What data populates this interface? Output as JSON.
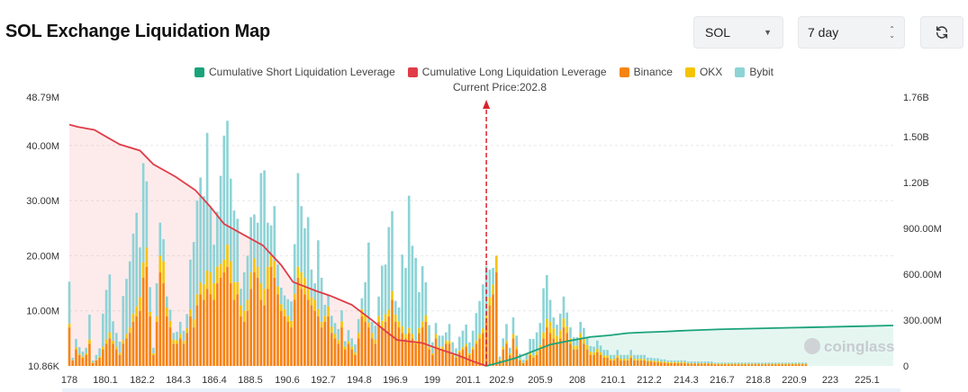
{
  "header": {
    "title": "SOL Exchange Liquidation Map",
    "symbol_value": "SOL",
    "period_value": "7 day",
    "refresh_icon": "refresh-icon"
  },
  "current_price_label": "Current Price:202.8",
  "watermark": "coinglass",
  "colors": {
    "short_line": "#1aa37a",
    "long_line": "#e03c47",
    "binance": "#f7840f",
    "okx": "#f5c400",
    "bybit": "#8dd3d6",
    "short_fill": "rgba(40,180,140,0.12)",
    "long_fill": "rgba(240,90,100,0.12)",
    "price_line": "#d8242f"
  },
  "chart_data": {
    "type": "bar",
    "title": "SOL Exchange Liquidation Map",
    "legend": [
      {
        "name": "Cumulative Short Liquidation Leverage",
        "color": "#1aa37a",
        "kind": "line"
      },
      {
        "name": "Cumulative Long Liquidation Leverage",
        "color": "#e03c47",
        "kind": "line"
      },
      {
        "name": "Binance",
        "color": "#f7840f",
        "kind": "bar"
      },
      {
        "name": "OKX",
        "color": "#f5c400",
        "kind": "bar"
      },
      {
        "name": "Bybit",
        "color": "#8dd3d6",
        "kind": "bar"
      }
    ],
    "legend_position": "top-center",
    "x_range": [
      178,
      227
    ],
    "x_ticks": [
      "178",
      "180.1",
      "182.2",
      "184.3",
      "186.4",
      "188.5",
      "190.6",
      "192.7",
      "194.8",
      "196.9",
      "199",
      "201.1",
      "202.9",
      "205.9",
      "208",
      "210.1",
      "212.2",
      "214.3",
      "216.7",
      "218.8",
      "220.9",
      "223",
      "225.1"
    ],
    "y_left": {
      "ticks": [
        "10.86K",
        "10.00M",
        "20.00M",
        "30.00M",
        "40.00M",
        "48.79M"
      ],
      "range": [
        0,
        48790000
      ]
    },
    "y_right": {
      "ticks": [
        "0",
        "300.00M",
        "600.00M",
        "900.00M",
        "1.20B",
        "1.50B",
        "1.76B"
      ],
      "range": [
        0,
        1760000000
      ]
    },
    "current_price": 202.8,
    "grid": true,
    "exchange_bars": {
      "price_start": 178.0,
      "price_step": 0.2,
      "binance": [
        7.0,
        1.0,
        3.0,
        2.0,
        1.5,
        2.0,
        4.0,
        0.5,
        1.0,
        1.5,
        3.0,
        4.0,
        5.0,
        4.0,
        3.0,
        2.0,
        4.0,
        5.0,
        6.0,
        8.0,
        9.0,
        10.0,
        16.0,
        18.0,
        9.0,
        2.0,
        8.0,
        17.0,
        15.0,
        9.0,
        7.0,
        4.0,
        4.0,
        5.0,
        4.0,
        6.0,
        9.0,
        7.0,
        11.0,
        13.0,
        12.0,
        14.0,
        13.0,
        12.0,
        15.0,
        16.0,
        17.0,
        18.0,
        15.0,
        12.0,
        13.0,
        9.0,
        8.0,
        10.0,
        14.0,
        17.0,
        16.0,
        12.0,
        11.0,
        14.0,
        18.0,
        16.0,
        13.0,
        10.0,
        9.0,
        8.0,
        7.0,
        12.0,
        16.0,
        14.0,
        13.0,
        12.0,
        11.0,
        10.0,
        9.0,
        7.0,
        8.0,
        9.0,
        6.0,
        5.0,
        4.0,
        7.0,
        3.0,
        4.0,
        3.0,
        2.0,
        5.0,
        9.0,
        8.0,
        7.0,
        5.0,
        4.0,
        8.0,
        7.0,
        8.0,
        9.0,
        12.0,
        8.0,
        7.0,
        6.0,
        5.0,
        6.0,
        5.0,
        4.0,
        6.0,
        7.0,
        8.0,
        3.0,
        2.0,
        5.0,
        3.0,
        3.0,
        4.0,
        4.0,
        2.0,
        1.5,
        2.5,
        3.0,
        3.5,
        2.0,
        3.0,
        4.0,
        5.0,
        6.0,
        8.0,
        11.0,
        13.0,
        17.0,
        1.0,
        3.0,
        4.0,
        2.0,
        5.0,
        3.0,
        1.0,
        0.5,
        1.0,
        2.0,
        1.5,
        2.0,
        3.0,
        5.0,
        7.0,
        6.0,
        5.0,
        4.0,
        5.0,
        7.0,
        6.0,
        4.0,
        3.0,
        3.0,
        5.0,
        4.0,
        3.0,
        2.0,
        2.0,
        2.5,
        2.0,
        1.5,
        1.5,
        1.0,
        1.0,
        1.5,
        1.0,
        1.0,
        1.0,
        1.5,
        1.0,
        1.0,
        1.0,
        1.0,
        0.8,
        0.8,
        0.7,
        0.7,
        0.6,
        0.6,
        0.5,
        0.5,
        0.5,
        0.5,
        0.5,
        0.5,
        0.4,
        0.4,
        0.4,
        0.4,
        0.4,
        0.4,
        0.4,
        0.4,
        0.3,
        0.3,
        0.3,
        0.3,
        0.3,
        0.3,
        0.3,
        0.3,
        0.3,
        0.3,
        0.3,
        0.3,
        0.3,
        0.3,
        0.3,
        0.3,
        0.3,
        0.3,
        0.3,
        0.3,
        0.3,
        0.3,
        0.3,
        0.3,
        0.3,
        0.3,
        0.3,
        0.3
      ],
      "okx": [
        0.7,
        0.0,
        0.4,
        0.2,
        0.2,
        0.3,
        0.8,
        0.1,
        0.1,
        0.2,
        0.5,
        0.8,
        1.1,
        0.6,
        0.5,
        0.4,
        0.7,
        0.8,
        1.0,
        1.5,
        1.8,
        2.5,
        2.8,
        3.5,
        0.8,
        0.3,
        1.0,
        3.0,
        4.0,
        1.6,
        1.2,
        0.8,
        0.7,
        0.8,
        0.6,
        0.9,
        1.3,
        1.5,
        2.0,
        2.2,
        2.8,
        3.3,
        4.0,
        3.0,
        3.0,
        2.5,
        2.3,
        4.0,
        4.0,
        3.2,
        2.2,
        2.0,
        2.0,
        2.0,
        3.0,
        2.5,
        2.0,
        3.0,
        3.0,
        4.0,
        2.0,
        3.0,
        1.4,
        1.2,
        1.3,
        1.1,
        1.2,
        1.1,
        2.0,
        3.0,
        3.0,
        2.0,
        1.5,
        2.0,
        1.3,
        1.0,
        1.1,
        1.8,
        1.1,
        0.8,
        0.7,
        1.1,
        0.5,
        0.5,
        0.5,
        0.4,
        1.0,
        1.3,
        1.2,
        0.9,
        1.0,
        0.8,
        1.1,
        1.2,
        1.4,
        1.2,
        1.6,
        1.3,
        1.1,
        1.2,
        0.8,
        0.9,
        0.8,
        0.6,
        0.9,
        1.1,
        1.2,
        0.4,
        0.3,
        0.8,
        0.5,
        0.5,
        0.6,
        0.6,
        0.3,
        0.2,
        0.3,
        0.4,
        0.5,
        0.3,
        0.4,
        0.6,
        0.8,
        0.8,
        1.1,
        1.5,
        1.8,
        3.0,
        0.2,
        0.5,
        0.6,
        0.3,
        0.8,
        0.5,
        0.2,
        0.1,
        0.2,
        0.4,
        0.4,
        0.6,
        0.8,
        1.1,
        1.5,
        2.0,
        1.8,
        1.5,
        1.5,
        1.6,
        1.2,
        1.0,
        0.7,
        0.7,
        1.0,
        0.9,
        0.8,
        0.6,
        0.5,
        0.6,
        0.5,
        0.4,
        0.4,
        0.3,
        0.3,
        0.4,
        0.3,
        0.3,
        0.3,
        0.4,
        0.3,
        0.3,
        0.3,
        0.3,
        0.2,
        0.2,
        0.2,
        0.2,
        0.2,
        0.2,
        0.2,
        0.2,
        0.2,
        0.2,
        0.2,
        0.2,
        0.1,
        0.1,
        0.1,
        0.1,
        0.1,
        0.1,
        0.1,
        0.1,
        0.1,
        0.1,
        0.1,
        0.1,
        0.1,
        0.1,
        0.1,
        0.1,
        0.1,
        0.1,
        0.1,
        0.1,
        0.1,
        0.1,
        0.1,
        0.1,
        0.1,
        0.1,
        0.1,
        0.1,
        0.1,
        0.1,
        0.1,
        0.1,
        0.1,
        0.1,
        0.1,
        0.1
      ],
      "bybit": [
        7.6,
        0.5,
        1.5,
        1.2,
        0.9,
        1.0,
        4.5,
        0.4,
        0.9,
        1.5,
        6.0,
        9.0,
        10.5,
        3.5,
        2.5,
        2.0,
        8.0,
        10.0,
        12.0,
        14.5,
        17.0,
        9.0,
        18.0,
        12.0,
        4.5,
        1.0,
        6.0,
        6.0,
        4.0,
        2.0,
        2.0,
        1.2,
        1.5,
        2.2,
        1.8,
        2.5,
        9.0,
        14.0,
        17.0,
        19.0,
        16.0,
        25.0,
        12.0,
        7.0,
        10.0,
        16.0,
        22.5,
        22.5,
        15.0,
        13.0,
        11.5,
        3.0,
        7.0,
        8.0,
        10.0,
        8.0,
        8.0,
        20.0,
        21.5,
        8.0,
        5.5,
        10.0,
        4.0,
        3.0,
        2.5,
        3.0,
        3.5,
        9.0,
        17.0,
        12.0,
        9.0,
        13.0,
        5.0,
        3.0,
        12.5,
        8.0,
        2.0,
        2.0,
        2.0,
        2.0,
        2.0,
        2.0,
        1.0,
        2.0,
        1.5,
        1.5,
        2.5,
        2.0,
        6.0,
        14.5,
        2.0,
        2.5,
        3.5,
        10.0,
        9.0,
        15.0,
        14.5,
        2.5,
        2.5,
        13.0,
        12.0,
        24.0,
        16.0,
        15.0,
        6.5,
        10.0,
        6.0,
        4.0,
        2.0,
        2.0,
        2.0,
        2.0,
        1.5,
        3.0,
        2.0,
        1.5,
        2.5,
        3.0,
        3.5,
        2.0,
        3.0,
        5.0,
        6.0,
        8.0,
        9.0,
        5.0,
        3.0,
        0.0,
        0.5,
        1.5,
        3.0,
        1.0,
        3.0,
        2.0,
        1.0,
        0.5,
        1.0,
        2.5,
        3.0,
        3.5,
        4.0,
        8.0,
        8.0,
        4.0,
        2.0,
        2.0,
        3.0,
        4.0,
        2.5,
        2.0,
        1.5,
        1.5,
        2.0,
        2.0,
        1.5,
        1.0,
        1.0,
        1.5,
        1.2,
        1.0,
        1.0,
        0.7,
        0.7,
        1.0,
        0.7,
        0.7,
        0.7,
        1.0,
        0.7,
        0.7,
        0.7,
        0.7,
        0.5,
        0.5,
        0.5,
        0.5,
        0.4,
        0.4,
        0.3,
        0.3,
        0.3,
        0.3,
        0.3,
        0.3,
        0.3,
        0.3,
        0.3,
        0.3,
        0.3,
        0.3,
        0.3,
        0.3,
        0.2,
        0.2,
        0.2,
        0.2,
        0.2,
        0.2,
        0.2,
        0.2,
        0.2,
        0.2,
        0.2,
        0.2,
        0.2,
        0.2,
        0.2,
        0.2,
        0.2,
        0.2,
        0.2,
        0.2,
        0.2,
        0.2,
        0.2,
        0.2,
        0.2,
        0.2,
        0.2,
        0.2,
        0.2,
        0.2,
        0.2,
        0.2,
        0.2,
        0.2
      ]
    },
    "cumulative_long": {
      "x": [
        178,
        178.5,
        179.5,
        180.2,
        181,
        182.2,
        183,
        184.3,
        185.5,
        186.4,
        187.2,
        188.5,
        189.5,
        190.6,
        191.3,
        192.7,
        193.5,
        194.8,
        196,
        196.9,
        197.5,
        199,
        200,
        201.1,
        202,
        202.8
      ],
      "values": [
        1580000000.0,
        1565000000.0,
        1545000000.0,
        1500000000.0,
        1450000000.0,
        1410000000.0,
        1320000000.0,
        1240000000.0,
        1150000000.0,
        1040000000.0,
        930000000.0,
        850000000.0,
        790000000.0,
        660000000.0,
        550000000.0,
        490000000.0,
        460000000.0,
        400000000.0,
        300000000.0,
        220000000.0,
        170000000.0,
        150000000.0,
        110000000.0,
        70000000.0,
        30000000.0,
        0.0
      ]
    },
    "cumulative_short": {
      "x": [
        202.8,
        203.5,
        204.5,
        205.2,
        205.9,
        206.6,
        208,
        209,
        210.1,
        211.2,
        212.2,
        213.5,
        214.3,
        216.7,
        218.8,
        220.9,
        223,
        225.1,
        227
      ],
      "values": [
        0.0,
        20000000.0,
        50000000.0,
        80000000.0,
        110000000.0,
        140000000.0,
        170000000.0,
        190000000.0,
        200000000.0,
        215000000.0,
        220000000.0,
        225000000.0,
        230000000.0,
        240000000.0,
        245000000.0,
        250000000.0,
        255000000.0,
        260000000.0,
        265000000.0
      ]
    }
  }
}
